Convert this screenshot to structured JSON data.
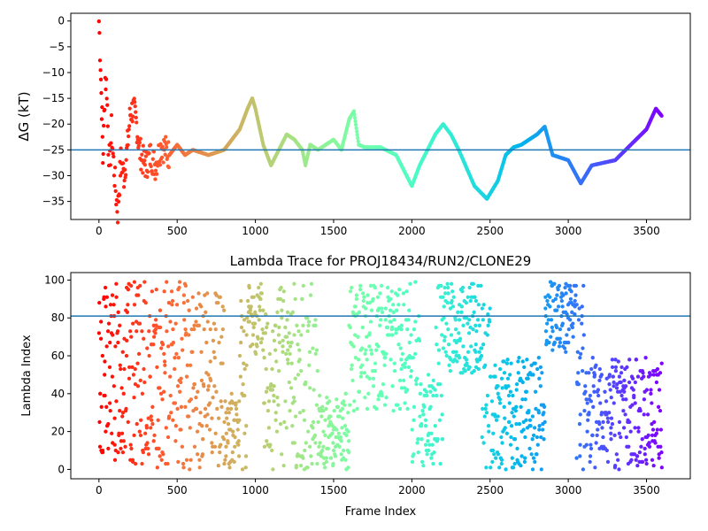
{
  "chart_data": [
    {
      "type": "scatter",
      "title": "",
      "xlabel": "",
      "ylabel": "ΔG (kT)",
      "xlim": [
        -180,
        3780
      ],
      "ylim": [
        -38.5,
        1.5
      ],
      "xticks": [
        0,
        500,
        1000,
        1500,
        2000,
        2500,
        3000,
        3500
      ],
      "yticks": [
        0,
        -5,
        -10,
        -15,
        -20,
        -25,
        -30,
        -35
      ],
      "hline": -25,
      "hline_color": "#1f77b4",
      "colormap": "rainbow (x-position: red at frame 0 to violet at frame 3600)",
      "marker_size": 3,
      "grid": false,
      "legend": "none",
      "series": [
        {
          "description": "free energy trace",
          "points": [
            [
              0,
              0
            ],
            [
              10,
              -8
            ],
            [
              15,
              -14
            ],
            [
              20,
              -19
            ],
            [
              25,
              -27
            ],
            [
              30,
              -22
            ],
            [
              40,
              -11
            ],
            [
              50,
              -13
            ],
            [
              60,
              -24
            ],
            [
              70,
              -28
            ],
            [
              80,
              -21
            ],
            [
              90,
              -26
            ],
            [
              100,
              -30
            ],
            [
              110,
              -34
            ],
            [
              120,
              -37
            ],
            [
              140,
              -27
            ],
            [
              160,
              -30
            ],
            [
              180,
              -25
            ],
            [
              200,
              -18
            ],
            [
              220,
              -17
            ],
            [
              240,
              -20
            ],
            [
              260,
              -25
            ],
            [
              280,
              -27
            ],
            [
              300,
              -28
            ],
            [
              330,
              -26
            ],
            [
              360,
              -28
            ],
            [
              400,
              -24
            ],
            [
              450,
              -26
            ],
            [
              500,
              -24
            ],
            [
              550,
              -26
            ],
            [
              600,
              -25
            ],
            [
              700,
              -26
            ],
            [
              800,
              -25
            ],
            [
              900,
              -21
            ],
            [
              950,
              -17
            ],
            [
              980,
              -15
            ],
            [
              1000,
              -17
            ],
            [
              1050,
              -24
            ],
            [
              1100,
              -28
            ],
            [
              1150,
              -25
            ],
            [
              1200,
              -22
            ],
            [
              1250,
              -23
            ],
            [
              1300,
              -25
            ],
            [
              1320,
              -28
            ],
            [
              1350,
              -24
            ],
            [
              1400,
              -25
            ],
            [
              1500,
              -23
            ],
            [
              1550,
              -25
            ],
            [
              1600,
              -19
            ],
            [
              1630,
              -17.5
            ],
            [
              1660,
              -24
            ],
            [
              1700,
              -24.5
            ],
            [
              1800,
              -24.5
            ],
            [
              1900,
              -26
            ],
            [
              1950,
              -29
            ],
            [
              2000,
              -32
            ],
            [
              2050,
              -28
            ],
            [
              2100,
              -25
            ],
            [
              2150,
              -22
            ],
            [
              2200,
              -20
            ],
            [
              2250,
              -22
            ],
            [
              2300,
              -25
            ],
            [
              2400,
              -32
            ],
            [
              2480,
              -34.5
            ],
            [
              2550,
              -31
            ],
            [
              2600,
              -26
            ],
            [
              2650,
              -24.5
            ],
            [
              2700,
              -24
            ],
            [
              2800,
              -22
            ],
            [
              2850,
              -20.5
            ],
            [
              2900,
              -26
            ],
            [
              3000,
              -27
            ],
            [
              3080,
              -31.5
            ],
            [
              3150,
              -28
            ],
            [
              3300,
              -27
            ],
            [
              3400,
              -24
            ],
            [
              3500,
              -21
            ],
            [
              3560,
              -17
            ],
            [
              3600,
              -18.5
            ]
          ]
        }
      ]
    },
    {
      "type": "scatter",
      "title": "Lambda Trace for PROJ18434/RUN2/CLONE29",
      "xlabel": "Frame Index",
      "ylabel": "Lambda Index",
      "xlim": [
        -180,
        3780
      ],
      "ylim": [
        -4.95,
        103.95
      ],
      "xticks": [
        0,
        500,
        1000,
        1500,
        2000,
        2500,
        3000,
        3500
      ],
      "yticks": [
        0,
        20,
        40,
        60,
        80,
        100
      ],
      "hline": 81,
      "hline_color": "#1f77b4",
      "colormap": "rainbow (x-position: red at frame 0 to violet at frame 3600)",
      "marker_size": 3,
      "grid": false,
      "legend": "none",
      "series": [
        {
          "description": "lambda index per frame; dense scatter between 0 and 99, clusters shift over time",
          "index_range": [
            0,
            99
          ],
          "frame_range": [
            0,
            3600
          ],
          "dense_bands": [
            {
              "frames": [
                0,
                700
              ],
              "lambda": [
                0,
                99
              ]
            },
            {
              "frames": [
                800,
                900
              ],
              "lambda": [
                0,
                40
              ]
            },
            {
              "frames": [
                950,
                1050
              ],
              "lambda": [
                60,
                99
              ]
            },
            {
              "frames": [
                1400,
                1600
              ],
              "lambda": [
                0,
                40
              ]
            },
            {
              "frames": [
                1600,
                2000
              ],
              "lambda": [
                30,
                99
              ]
            },
            {
              "frames": [
                2050,
                2150
              ],
              "lambda": [
                0,
                50
              ]
            },
            {
              "frames": [
                2200,
                2450
              ],
              "lambda": [
                50,
                99
              ]
            },
            {
              "frames": [
                2500,
                2850
              ],
              "lambda": [
                0,
                60
              ]
            },
            {
              "frames": [
                2850,
                3050
              ],
              "lambda": [
                60,
                99
              ]
            },
            {
              "frames": [
                3100,
                3600
              ],
              "lambda": [
                0,
                60
              ]
            }
          ]
        }
      ]
    }
  ]
}
